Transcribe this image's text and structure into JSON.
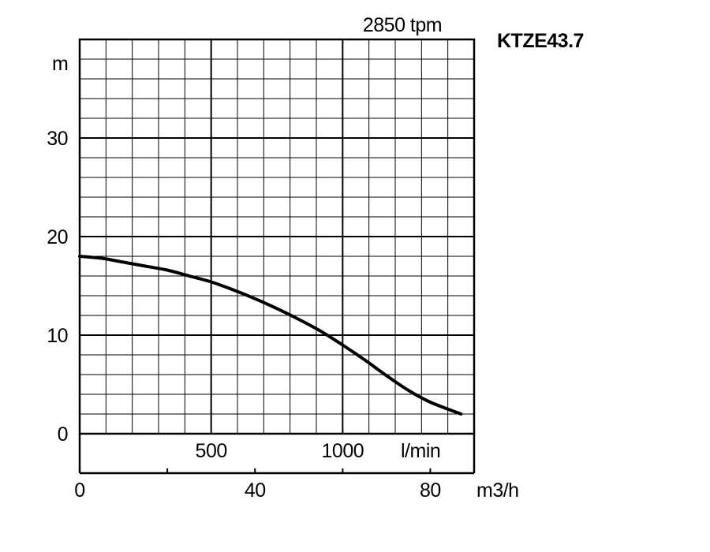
{
  "chart_data": {
    "type": "line",
    "title": "KTZE43.7",
    "speed_label": "2850 tpm",
    "ylabel": "m",
    "ylim": [
      0,
      40
    ],
    "y_ticks": [
      0,
      10,
      20,
      30
    ],
    "x_flow_unit_lmin": "l/min",
    "x_flow_ticks_lmin": [
      500,
      1000
    ],
    "x_flow_unit_m3h": "m3/h",
    "x_flow_ticks_m3h": [
      0,
      40,
      80
    ],
    "xlim_m3h": [
      0,
      90
    ],
    "grid": true,
    "series": [
      {
        "x": [
          0,
          5,
          10,
          15,
          20,
          25,
          30,
          35,
          40,
          45,
          50,
          55,
          60,
          65,
          70,
          75,
          80,
          87
        ],
        "y": [
          18,
          17.8,
          17.4,
          17.0,
          16.6,
          16.0,
          15.4,
          14.6,
          13.7,
          12.7,
          11.6,
          10.4,
          9.0,
          7.5,
          5.9,
          4.4,
          3.2,
          2.0
        ]
      }
    ]
  }
}
